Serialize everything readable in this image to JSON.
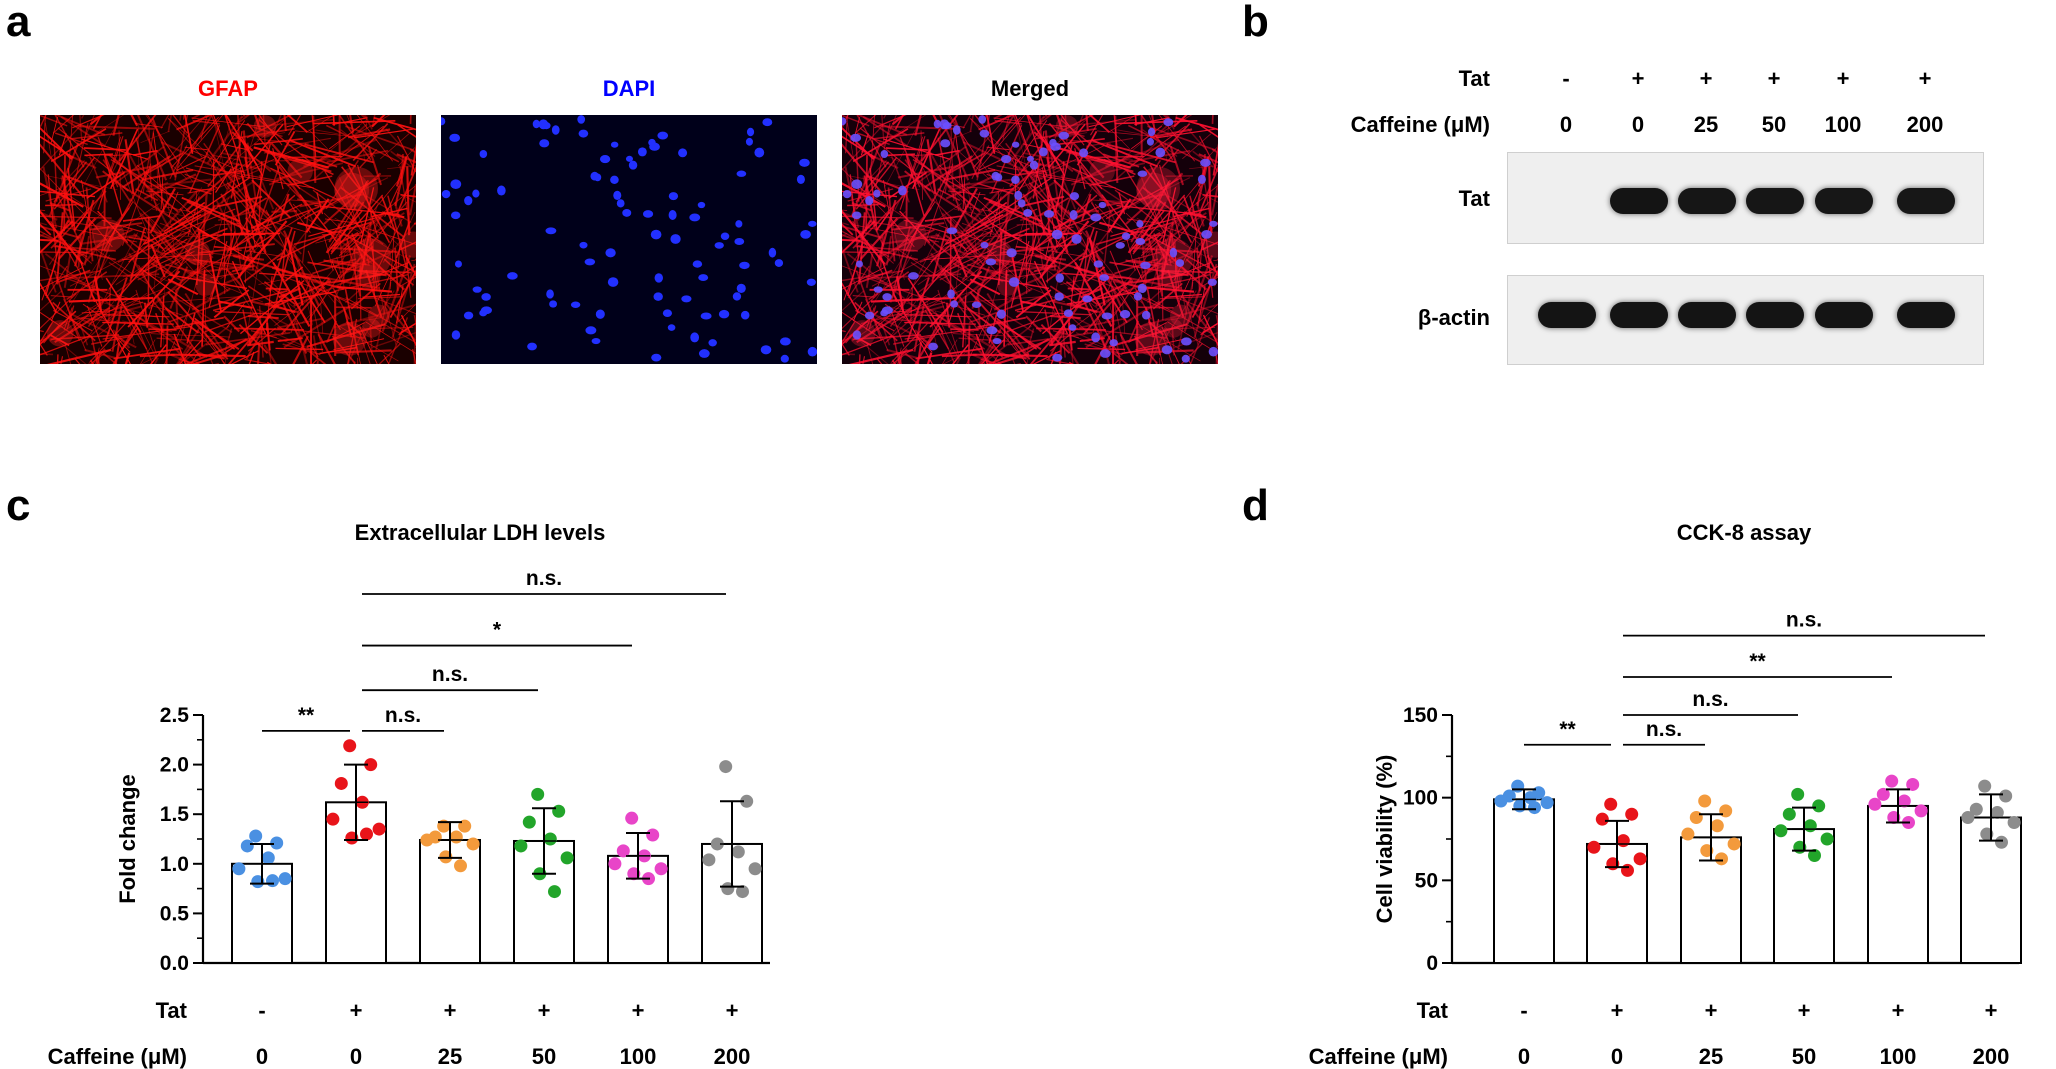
{
  "panel_letters": {
    "a": "a",
    "b": "b",
    "c": "c",
    "d": "d"
  },
  "panel_a": {
    "titles": [
      {
        "text": "GFAP",
        "color": "#ff0000"
      },
      {
        "text": "DAPI",
        "color": "#0000ff"
      },
      {
        "text": "Merged",
        "color": "#000000"
      }
    ]
  },
  "panel_b": {
    "row_labels": {
      "tat": "Tat",
      "caffeine": "Caffeine (μM)"
    },
    "tat_signs": [
      "-",
      "+",
      "+",
      "+",
      "+",
      "+"
    ],
    "caffeine_doses": [
      "0",
      "0",
      "25",
      "50",
      "100",
      "200"
    ],
    "blot_labels": {
      "tat": "Tat",
      "actin": "β-actin"
    },
    "tat_band_intensity": [
      0,
      1,
      0.95,
      0.95,
      0.92,
      0.93
    ],
    "actin_band_intensity": [
      1,
      1,
      1,
      1,
      1,
      1
    ]
  },
  "chart_data": [
    {
      "type": "bar",
      "panel": "c",
      "title": "Extracellular LDH levels",
      "ylabel": "Fold change",
      "ylim": [
        0,
        2.5
      ],
      "yticks": [
        "0.0",
        "0.5",
        "1.0",
        "1.5",
        "2.0",
        "2.5"
      ],
      "ytick_values": [
        0,
        0.5,
        1.0,
        1.5,
        2.0,
        2.5
      ],
      "row_labels": {
        "tat": "Tat",
        "caffeine": "Caffeine (μM)"
      },
      "tat": [
        "-",
        "+",
        "+",
        "+",
        "+",
        "+"
      ],
      "caffeine": [
        "0",
        "0",
        "25",
        "50",
        "100",
        "200"
      ],
      "colors": [
        "#4a90e2",
        "#e8141a",
        "#f39a3c",
        "#22a52a",
        "#e845c8",
        "#8c8c8c"
      ],
      "means": [
        1.0,
        1.62,
        1.24,
        1.23,
        1.08,
        1.2
      ],
      "sd": [
        0.2,
        0.38,
        0.18,
        0.33,
        0.23,
        0.43
      ],
      "points": [
        [
          1.28,
          1.21,
          1.18,
          1.06,
          0.95,
          0.85,
          0.82,
          0.83
        ],
        [
          2.19,
          2.0,
          1.81,
          1.62,
          1.45,
          1.35,
          1.26,
          1.3
        ],
        [
          1.38,
          1.38,
          1.27,
          1.27,
          1.24,
          1.2,
          1.07,
          0.98
        ],
        [
          1.7,
          1.53,
          1.42,
          1.25,
          1.18,
          1.06,
          0.9,
          0.72
        ],
        [
          1.46,
          1.29,
          1.13,
          1.08,
          1.0,
          0.95,
          0.9,
          0.85
        ],
        [
          1.98,
          1.63,
          1.2,
          1.12,
          1.04,
          0.95,
          0.75,
          0.72
        ]
      ],
      "significance": [
        {
          "from": 0,
          "to": 1,
          "label": "**",
          "y": 2.34
        },
        {
          "from": 1,
          "to": 2,
          "label": "n.s.",
          "y": 2.34
        },
        {
          "from": 1,
          "to": 3,
          "label": "n.s.",
          "y": 2.75
        },
        {
          "from": 1,
          "to": 4,
          "label": "*",
          "y": 3.2
        },
        {
          "from": 1,
          "to": 5,
          "label": "n.s.",
          "y": 3.72
        }
      ]
    },
    {
      "type": "bar",
      "panel": "d",
      "title": "CCK-8 assay",
      "ylabel": "Cell viability (%)",
      "ylim": [
        0,
        150
      ],
      "yticks": [
        "0",
        "50",
        "100",
        "150"
      ],
      "ytick_values": [
        0,
        50,
        100,
        150
      ],
      "row_labels": {
        "tat": "Tat",
        "caffeine": "Caffeine (μM)"
      },
      "tat": [
        "-",
        "+",
        "+",
        "+",
        "+",
        "+"
      ],
      "caffeine": [
        "0",
        "0",
        "25",
        "50",
        "100",
        "200"
      ],
      "colors": [
        "#4a90e2",
        "#e8141a",
        "#f39a3c",
        "#22a52a",
        "#e845c8",
        "#8c8c8c"
      ],
      "means": [
        99,
        72,
        76,
        81,
        95,
        88
      ],
      "sd": [
        6,
        14,
        14,
        13,
        10,
        14
      ],
      "points": [
        [
          107,
          103,
          101,
          100,
          98,
          97,
          95,
          94
        ],
        [
          96,
          90,
          87,
          74,
          70,
          63,
          60,
          56
        ],
        [
          98,
          92,
          88,
          83,
          78,
          72,
          68,
          63
        ],
        [
          102,
          95,
          90,
          83,
          80,
          75,
          70,
          65
        ],
        [
          110,
          108,
          102,
          98,
          96,
          92,
          88,
          85
        ],
        [
          107,
          101,
          93,
          91,
          88,
          85,
          78,
          73
        ]
      ],
      "significance": [
        {
          "from": 0,
          "to": 1,
          "label": "**",
          "y": 132
        },
        {
          "from": 1,
          "to": 2,
          "label": "n.s.",
          "y": 132
        },
        {
          "from": 1,
          "to": 3,
          "label": "n.s.",
          "y": 150
        },
        {
          "from": 1,
          "to": 4,
          "label": "**",
          "y": 173
        },
        {
          "from": 1,
          "to": 5,
          "label": "n.s.",
          "y": 198
        }
      ]
    }
  ]
}
